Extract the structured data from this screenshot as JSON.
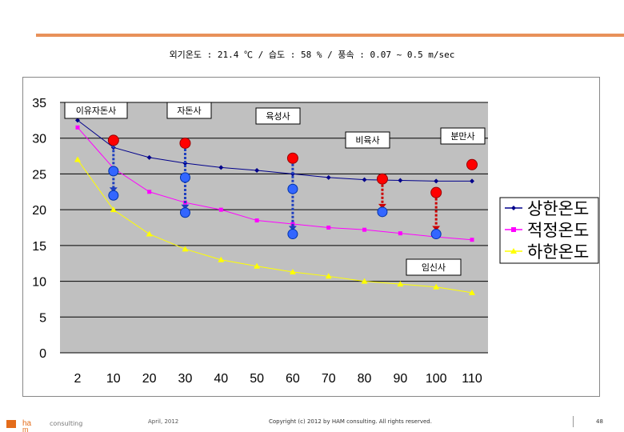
{
  "header": {
    "subtitle": "외기온도 : 21.4 ℃  / 습도 : 58 % / 풍속 : 0.07 ~ 0.5 m/sec"
  },
  "chart_data": {
    "type": "line",
    "categories": [
      "2",
      "10",
      "20",
      "30",
      "40",
      "50",
      "60",
      "70",
      "80",
      "90",
      "100",
      "110"
    ],
    "ylim": [
      0,
      35
    ],
    "yticks": [
      "0",
      "5",
      "10",
      "15",
      "20",
      "25",
      "30",
      "35"
    ],
    "grid": true,
    "legend": "right",
    "series": [
      {
        "name": "상한온도",
        "color": "#00008b",
        "marker": "diamond",
        "values": [
          32.5,
          28.7,
          27.3,
          26.5,
          25.9,
          25.5,
          25.0,
          24.5,
          24.2,
          24.1,
          24.0,
          24.0
        ]
      },
      {
        "name": "적정온도",
        "color": "#ff00ff",
        "marker": "square",
        "values": [
          31.5,
          25.8,
          22.5,
          21.0,
          20.0,
          18.5,
          18.0,
          17.5,
          17.2,
          16.7,
          16.2,
          15.8
        ]
      },
      {
        "name": "하한온도",
        "color": "#ffff00",
        "marker": "triangle",
        "values": [
          27.0,
          20.0,
          16.6,
          14.5,
          13.0,
          12.1,
          11.3,
          10.7,
          10.0,
          9.6,
          9.2,
          8.4
        ]
      }
    ],
    "transitions": [
      {
        "label": "이유자돈사",
        "x": 10,
        "high": 29.7,
        "low": 22.0,
        "mid": 25.4
      },
      {
        "label": "자돈사",
        "x": 30,
        "high": 29.3,
        "low": 19.6,
        "mid": 24.5
      },
      {
        "label": "육성사",
        "x": 60,
        "high": 27.2,
        "low": 16.6,
        "mid": 22.9
      },
      {
        "label": "비육사",
        "x": 85,
        "high": 24.3,
        "low": 19.7,
        "mid": null
      },
      {
        "label": "분만사",
        "x": 100,
        "high": 22.4,
        "low": 16.6,
        "mid": null
      },
      {
        "label": "분만사",
        "x": 110,
        "high": 26.3,
        "low": null,
        "mid": null
      }
    ],
    "annotations": [
      "이유자돈사",
      "자돈사",
      "육성사",
      "비육사",
      "분만사",
      "임신사"
    ]
  },
  "footer": {
    "brand": "consulting",
    "date": "April, 2012",
    "copyright": "Copyright (c) 2012 by HAM consulting. All rights reserved.",
    "page": "48"
  }
}
